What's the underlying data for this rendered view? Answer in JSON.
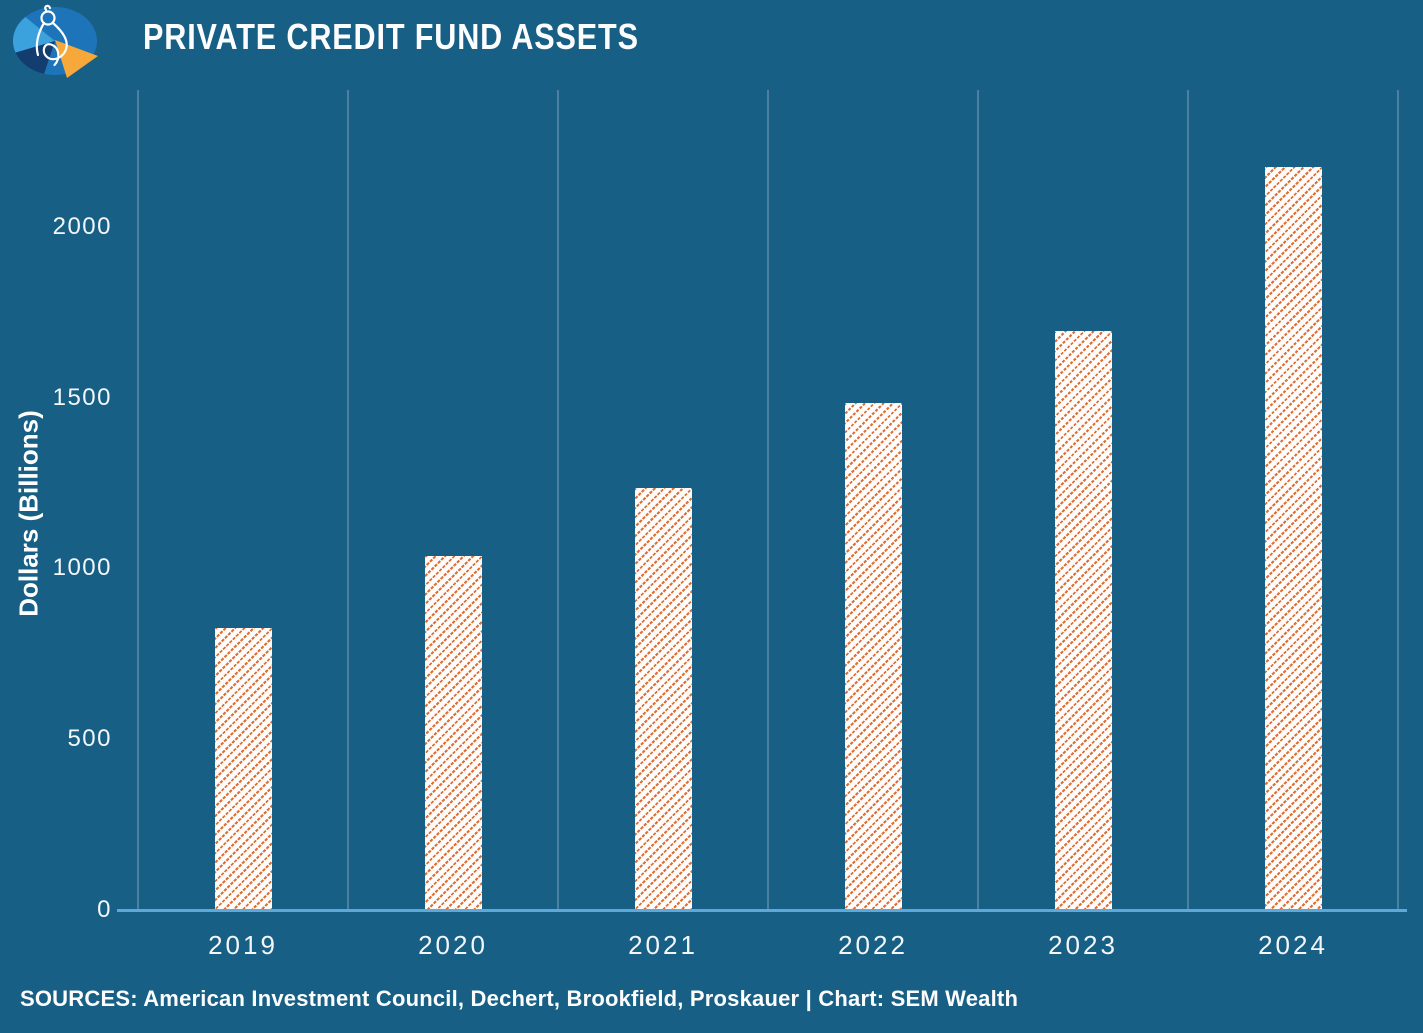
{
  "header": {
    "title": "PRIVATE CREDIT FUND ASSETS",
    "logo": "sem-wealth-logo"
  },
  "footer": {
    "sources": "SOURCES: American Investment Council, Dechert, Brookfield, Proskauer | Chart: SEM Wealth"
  },
  "colors": {
    "background": "#175f85",
    "bar_hatch_orange": "#de6f36",
    "bar_base_white": "#fdfcfa",
    "gridline": "#4c80a0",
    "axis_line": "#5ea9d9",
    "text": "#ffffff",
    "logo_light_blue": "#3ba2de",
    "logo_mid_blue": "#1d74b8",
    "logo_navy": "#123d6e",
    "logo_orange": "#f6a83b"
  },
  "chart_data": {
    "type": "bar",
    "title": "PRIVATE CREDIT FUND ASSETS",
    "categories": [
      "2019",
      "2020",
      "2021",
      "2022",
      "2023",
      "2024"
    ],
    "values": [
      825,
      1035,
      1235,
      1485,
      1695,
      2175
    ],
    "xlabel": "",
    "ylabel": "Dollars (Billions)",
    "y_ticks": [
      0,
      500,
      1000,
      1500,
      2000
    ],
    "ylim": [
      0,
      2400
    ],
    "grid": "vertical category separators only",
    "legend": "none",
    "bar_style": "white fill with orange diagonal dotted hatch"
  }
}
